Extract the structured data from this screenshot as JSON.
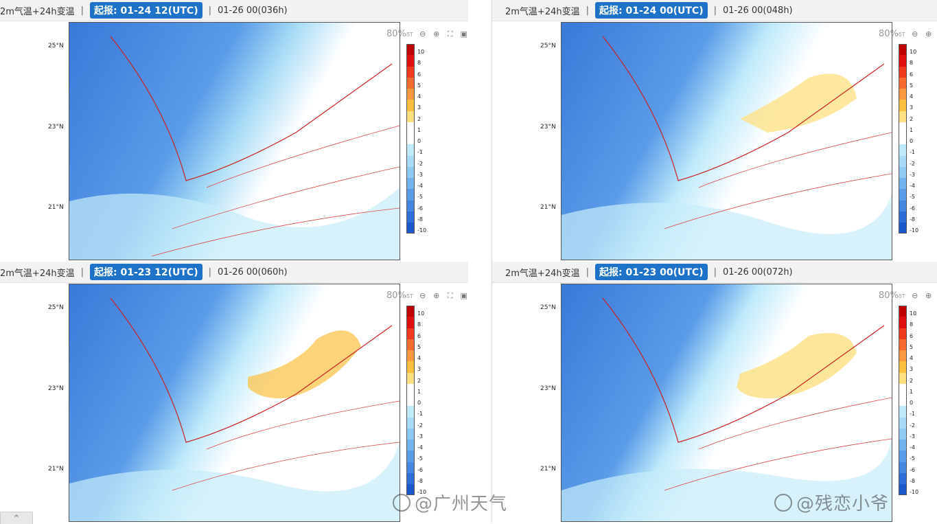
{
  "panels": [
    {
      "title": "2m气温+24h变温",
      "separator": "|",
      "init": "起报: 01-24 12(UTC)",
      "valid": "01-26 00(036h)"
    },
    {
      "title": "2m气温+24h变温",
      "separator": "|",
      "init": "起报: 01-24 00(UTC)",
      "valid": "01-26 00(048h)"
    },
    {
      "title": "2m气温+24h变温",
      "separator": "|",
      "init": "起报: 01-23 12(UTC)",
      "valid": "01-26 00(060h)"
    },
    {
      "title": "2m气温+24h变温",
      "separator": "|",
      "init": "起报: 01-23 00(UTC)",
      "valid": "01-26 00(072h)"
    }
  ],
  "toolbar": {
    "zoom": "80%",
    "zoom_suffix": "δT",
    "icons": [
      "zoom-out-icon",
      "zoom-in-icon",
      "fullscreen-icon",
      "screenshot-icon"
    ]
  },
  "lat_labels": [
    "25°N",
    "23°N",
    "21°N"
  ],
  "colorbar": {
    "labels": [
      "10",
      "8",
      "6",
      "5",
      "4",
      "3",
      "2",
      "1",
      "0",
      "-1",
      "-2",
      "-3",
      "-4",
      "-5",
      "-6",
      "-8",
      "-10"
    ],
    "colors": [
      "#c00000",
      "#e01010",
      "#f03a20",
      "#f76a30",
      "#f99a40",
      "#fbc040",
      "#fde080",
      "#ffffff",
      "#ffffff",
      "#bfeafa",
      "#a8dcf6",
      "#8ecaf2",
      "#74b4ee",
      "#5a9ce8",
      "#4486e0",
      "#2e6ed8",
      "#1c58cc"
    ]
  },
  "watermarks": [
    "@广州天气",
    "@残恋小爷"
  ],
  "scroll_button": "^"
}
